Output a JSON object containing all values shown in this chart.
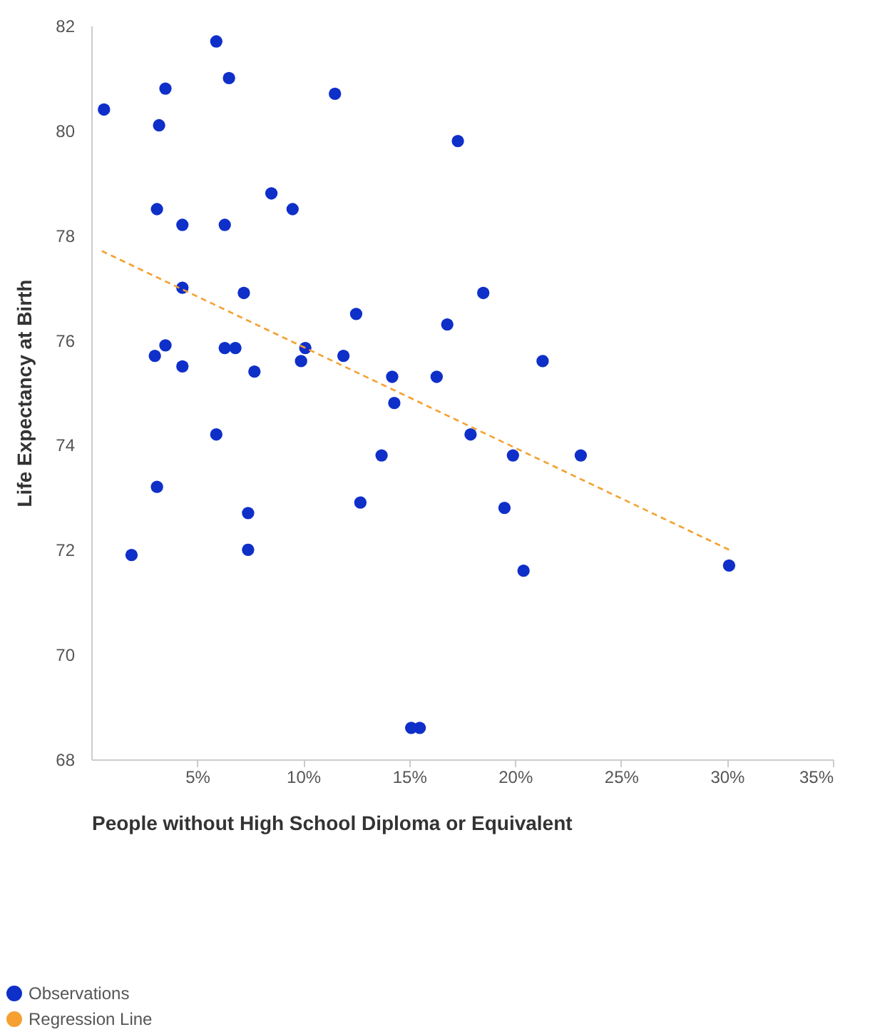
{
  "chart_data": {
    "type": "scatter",
    "xlabel": "People without High School Diploma or Equivalent",
    "ylabel": "Life Expectancy at Birth",
    "xlim": [
      0,
      35
    ],
    "ylim": [
      68,
      82
    ],
    "xticks": [
      {
        "value": 5,
        "label": "5%"
      },
      {
        "value": 10,
        "label": "10%"
      },
      {
        "value": 15,
        "label": "15%"
      },
      {
        "value": 20,
        "label": "20%"
      },
      {
        "value": 25,
        "label": "25%"
      },
      {
        "value": 30,
        "label": "30%"
      },
      {
        "value": 35,
        "label": "35%"
      }
    ],
    "yticks": [
      68,
      70,
      72,
      74,
      76,
      78,
      80,
      82
    ],
    "grid": false,
    "legend": "bottom left",
    "marker": "circle",
    "series": [
      {
        "name": "Observations",
        "color": "#0f2fc9",
        "x": [
          0.6,
          5.9,
          6.5,
          3.5,
          3.2,
          11.5,
          17.3,
          8.5,
          3.1,
          9.5,
          4.3,
          6.3,
          4.3,
          7.2,
          18.5,
          12.5,
          16.8,
          3.5,
          3.0,
          6.3,
          6.8,
          10.1,
          9.9,
          11.9,
          4.3,
          7.7,
          21.3,
          14.2,
          16.3,
          14.3,
          5.9,
          17.9,
          13.7,
          19.9,
          23.1,
          3.1,
          12.7,
          19.5,
          7.4,
          1.9,
          7.4,
          20.4,
          30.1,
          15.1,
          15.5
        ],
        "values": [
          80.4,
          81.7,
          81.0,
          80.8,
          80.1,
          80.7,
          79.8,
          78.8,
          78.5,
          78.5,
          78.2,
          78.2,
          77.0,
          76.9,
          76.9,
          76.5,
          76.3,
          75.9,
          75.7,
          75.85,
          75.85,
          75.85,
          75.6,
          75.7,
          75.5,
          75.4,
          75.6,
          75.3,
          75.3,
          74.8,
          74.2,
          74.2,
          73.8,
          73.8,
          73.8,
          73.2,
          72.9,
          72.8,
          72.7,
          71.9,
          72.0,
          71.6,
          71.7,
          68.6,
          68.6
        ]
      },
      {
        "name": "Regression Line",
        "type": "line",
        "color": "#f5a030",
        "line_style": "dashed",
        "marker": "none",
        "x": [
          0.5,
          30.1
        ],
        "values": [
          77.7,
          72.0
        ]
      }
    ]
  }
}
